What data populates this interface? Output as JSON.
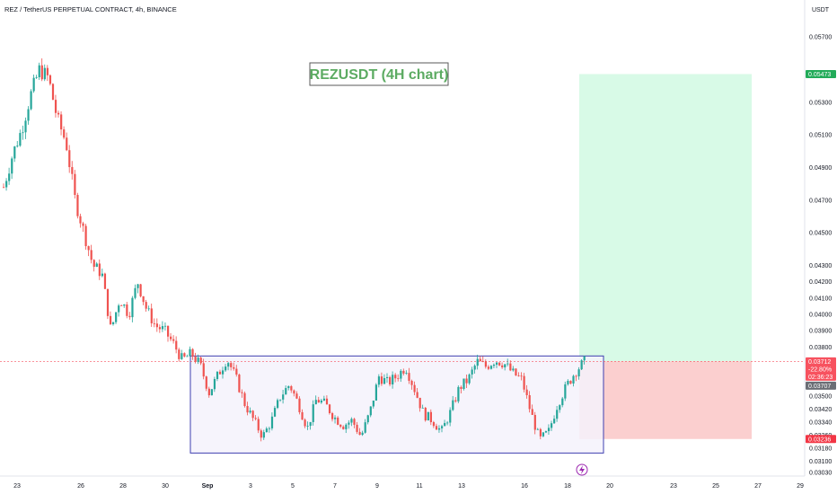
{
  "header": {
    "symbol": "REZ / TetherUS PERPETUAL CONTRACT, 4h, BINANCE",
    "currency": "USDT"
  },
  "annotation": "REZUSDT (4H chart)",
  "colors": {
    "up": "#26a69a",
    "down": "#ef5350",
    "range_box_border": "#3f3fb0",
    "range_box_fill": "#f4f2fc",
    "target_zone": "#d8fae7",
    "stop_zone": "#fbcfcf",
    "annotation_text": "#5cab62",
    "target_badge": "#22ab59",
    "stop_badge": "#f23645",
    "price_badge": "#f7525f",
    "current_badge": "#6b6e75"
  },
  "chart_data": {
    "type": "candlestick",
    "interval": "4h",
    "y_axis": {
      "position": "right",
      "range": [
        0.0302,
        0.0585
      ],
      "tick_labels": [
        "0.05700",
        "0.05300",
        "0.05100",
        "0.04900",
        "0.04700",
        "0.04500",
        "0.04300",
        "0.04200",
        "0.04100",
        "0.04000",
        "0.03900",
        "0.03800",
        "0.03500",
        "0.03420",
        "0.03340",
        "0.03260",
        "0.03180",
        "0.03100",
        "0.03030"
      ]
    },
    "x_axis": {
      "tick_labels": [
        "23",
        "26",
        "28",
        "30",
        "Sep",
        "3",
        "5",
        "7",
        "9",
        "11",
        "13",
        "16",
        "18",
        "20",
        "23",
        "25",
        "27",
        "29"
      ]
    },
    "key_levels": {
      "last_price": "0.03712",
      "change_pct": "-22.80%",
      "countdown": "02:36:23",
      "current": "0.03707",
      "target": "0.05473",
      "stop": "0.03236"
    },
    "range_box": {
      "top": 0.03745,
      "bottom": 0.0315
    },
    "candle_path": [
      0.0478,
      0.0498,
      0.0513,
      0.0534,
      0.055,
      0.0545,
      0.052,
      0.0505,
      0.047,
      0.045,
      0.043,
      0.0425,
      0.039,
      0.041,
      0.04,
      0.042,
      0.0403,
      0.0393,
      0.039,
      0.0382,
      0.0372,
      0.0376,
      0.0369,
      0.0352,
      0.0363,
      0.0373,
      0.0361,
      0.0345,
      0.0335,
      0.0325,
      0.0335,
      0.035,
      0.0357,
      0.0345,
      0.033,
      0.0348,
      0.0345,
      0.0337,
      0.0332,
      0.0335,
      0.0325,
      0.034,
      0.0362,
      0.0358,
      0.0362,
      0.0368,
      0.0354,
      0.0339,
      0.0335,
      0.0328,
      0.034,
      0.0355,
      0.036,
      0.0371,
      0.0368,
      0.0372,
      0.037,
      0.0364,
      0.036,
      0.034,
      0.0323,
      0.0328,
      0.0345,
      0.0356,
      0.0365,
      0.0371
    ]
  }
}
